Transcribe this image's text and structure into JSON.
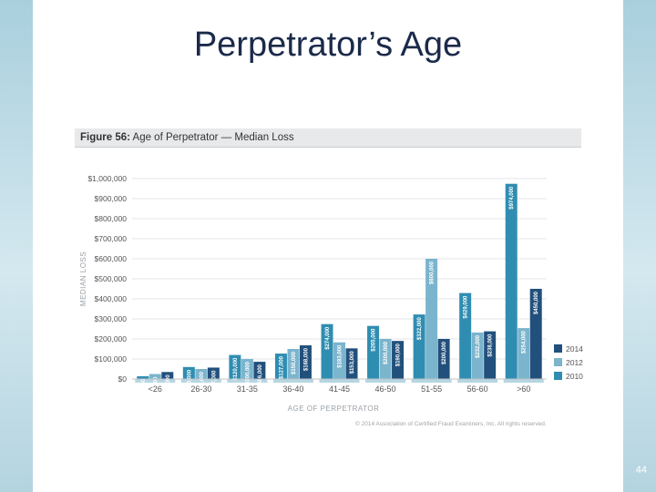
{
  "slide": {
    "title": "Perpetrator’s Age",
    "page_number": "44"
  },
  "figure": {
    "label": "Figure 56:",
    "caption": " Age of Perpetrator — Median Loss",
    "copyright": "© 2014 Association of Certified Fraud Examiners, Inc. All rights reserved."
  },
  "colors": {
    "2014": "#22507c",
    "2012": "#7bb4cd",
    "2010": "#2f8db1",
    "band": "#b6d6e2"
  },
  "chart_data": {
    "type": "bar",
    "title": "Age of Perpetrator — Median Loss",
    "xlabel": "AGE OF PERPETRATOR",
    "ylabel": "MEDIAN LOSS",
    "ylim": [
      0,
      1000000
    ],
    "yticks": [
      "$0",
      "$100,000",
      "$200,000",
      "$300,000",
      "$400,000",
      "$500,000",
      "$600,000",
      "$700,000",
      "$800,000",
      "$900,000",
      "$1,000,000"
    ],
    "categories": [
      "<26",
      "26-30",
      "31-35",
      "36-40",
      "41-45",
      "46-50",
      "51-55",
      "56-60",
      ">60"
    ],
    "legend_position": "bottom-right",
    "series": [
      {
        "name": "2010",
        "values": [
          14000,
          60000,
          120000,
          127000,
          274000,
          265000,
          322000,
          429000,
          974000
        ],
        "labels": [
          "$14,000",
          "$60,000",
          "$120,000",
          "$127,000",
          "$274,000",
          "$265,000",
          "$322,000",
          "$429,000",
          "$974,000"
        ]
      },
      {
        "name": "2012",
        "values": [
          25000,
          50000,
          100000,
          150000,
          183000,
          200000,
          600000,
          232000,
          254000
        ],
        "labels": [
          "$25,000",
          "$50,000",
          "$100,000",
          "$150,000",
          "$183,000",
          "$200,000",
          "$600,000",
          "$232,000",
          "$254,000"
        ]
      },
      {
        "name": "2014",
        "values": [
          35000,
          57000,
          86000,
          168000,
          153000,
          190000,
          200000,
          238000,
          450000
        ],
        "labels": [
          "$35,000",
          "$57,000",
          "$86,000",
          "$168,000",
          "$153,000",
          "$190,000",
          "$200,000",
          "$238,000",
          "$450,000"
        ]
      }
    ],
    "legend_order": [
      "2014",
      "2012",
      "2010"
    ]
  }
}
